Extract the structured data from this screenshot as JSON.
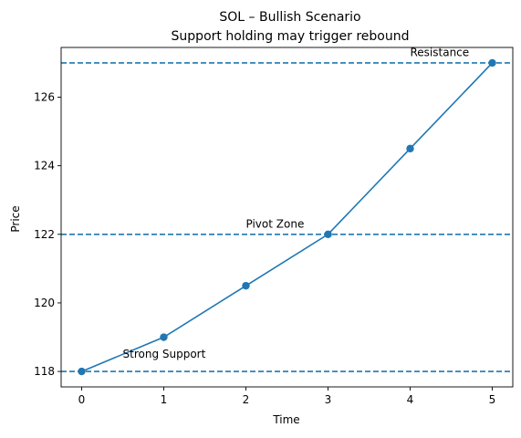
{
  "chart_data": {
    "type": "line",
    "title": "SOL – Bullish Scenario",
    "subtitle": "Support holding may trigger rebound",
    "xlabel": "Time",
    "ylabel": "Price",
    "x": [
      0,
      1,
      2,
      3,
      4,
      5
    ],
    "series": [
      {
        "values": [
          118,
          119,
          120.5,
          122,
          124.5,
          127
        ],
        "color": "#1f77b4",
        "marker": "circle"
      }
    ],
    "xlim": [
      -0.25,
      5.25
    ],
    "ylim": [
      117.55,
      127.45
    ],
    "xticks": [
      0,
      1,
      2,
      3,
      4,
      5
    ],
    "yticks": [
      118,
      120,
      122,
      124,
      126
    ],
    "grid": false,
    "horizontal_lines": [
      {
        "y": 118,
        "style": "dashed",
        "color": "#1f77b4"
      },
      {
        "y": 122,
        "style": "dashed",
        "color": "#1f77b4"
      },
      {
        "y": 127,
        "style": "dashed",
        "color": "#1f77b4"
      }
    ],
    "annotations": [
      {
        "text": "Strong Support",
        "x": 0.5,
        "y": 118.4
      },
      {
        "text": "Pivot Zone",
        "x": 2,
        "y": 122.2
      },
      {
        "text": "Resistance",
        "x": 4,
        "y": 127.2
      }
    ]
  }
}
